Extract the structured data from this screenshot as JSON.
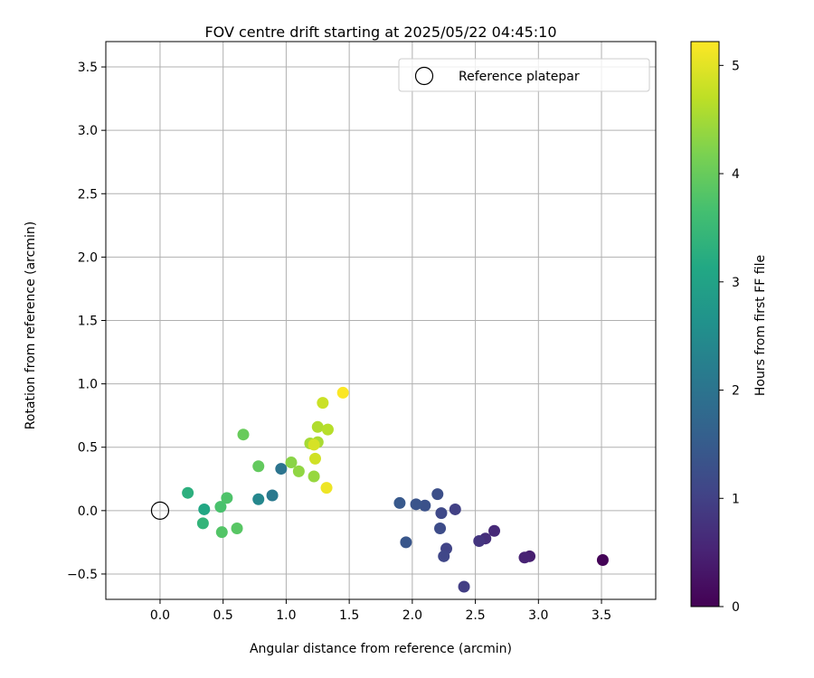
{
  "chart_data": {
    "type": "scatter",
    "title": "FOV centre drift starting at 2025/05/22 04:45:10",
    "xlabel": "Angular distance from reference (arcmin)",
    "ylabel": "Rotation from reference (arcmin)",
    "xlim": [
      -0.43,
      3.93
    ],
    "ylim": [
      -0.7,
      3.7
    ],
    "xticks": [
      0.0,
      0.5,
      1.0,
      1.5,
      2.0,
      2.5,
      3.0,
      3.5
    ],
    "xtick_labels": [
      "0.0",
      "0.5",
      "1.0",
      "1.5",
      "2.0",
      "2.5",
      "3.0",
      "3.5"
    ],
    "yticks": [
      -0.5,
      0.0,
      0.5,
      1.0,
      1.5,
      2.0,
      2.5,
      3.0,
      3.5
    ],
    "ytick_labels": [
      "−0.5",
      "0.0",
      "0.5",
      "1.0",
      "1.5",
      "2.0",
      "2.5",
      "3.0",
      "3.5"
    ],
    "grid": true,
    "legend": {
      "position": "top-right",
      "entries": [
        "Reference platepar"
      ]
    },
    "reference_point": {
      "x": 0.0,
      "y": 0.0
    },
    "colorbar": {
      "label": "Hours from first FF file",
      "range": [
        0,
        5.22
      ],
      "ticks": [
        0,
        1,
        2,
        3,
        4,
        5
      ],
      "tick_labels": [
        "0",
        "1",
        "2",
        "3",
        "4",
        "5"
      ],
      "colormap": "viridis"
    },
    "points": [
      {
        "x": 3.51,
        "y": -0.39,
        "c": 0.05
      },
      {
        "x": 2.93,
        "y": -0.36,
        "c": 0.45
      },
      {
        "x": 2.89,
        "y": -0.37,
        "c": 0.5
      },
      {
        "x": 2.65,
        "y": -0.16,
        "c": 0.6
      },
      {
        "x": 2.58,
        "y": -0.22,
        "c": 0.7
      },
      {
        "x": 2.53,
        "y": -0.24,
        "c": 0.8
      },
      {
        "x": 2.41,
        "y": -0.6,
        "c": 0.95
      },
      {
        "x": 2.34,
        "y": 0.01,
        "c": 1.0
      },
      {
        "x": 2.27,
        "y": -0.3,
        "c": 1.05
      },
      {
        "x": 2.25,
        "y": -0.36,
        "c": 1.1
      },
      {
        "x": 2.23,
        "y": -0.02,
        "c": 1.15
      },
      {
        "x": 2.22,
        "y": -0.14,
        "c": 1.2
      },
      {
        "x": 2.2,
        "y": 0.13,
        "c": 1.25
      },
      {
        "x": 2.1,
        "y": 0.04,
        "c": 1.3
      },
      {
        "x": 2.03,
        "y": 0.05,
        "c": 1.35
      },
      {
        "x": 1.95,
        "y": -0.25,
        "c": 1.4
      },
      {
        "x": 1.9,
        "y": 0.06,
        "c": 1.45
      },
      {
        "x": 0.96,
        "y": 0.33,
        "c": 2.0
      },
      {
        "x": 0.89,
        "y": 0.12,
        "c": 2.1
      },
      {
        "x": 0.78,
        "y": 0.09,
        "c": 2.4
      },
      {
        "x": 0.35,
        "y": 0.01,
        "c": 3.1
      },
      {
        "x": 0.22,
        "y": 0.14,
        "c": 3.3
      },
      {
        "x": 0.34,
        "y": -0.1,
        "c": 3.4
      },
      {
        "x": 0.48,
        "y": 0.03,
        "c": 3.7
      },
      {
        "x": 0.53,
        "y": 0.1,
        "c": 3.75
      },
      {
        "x": 0.49,
        "y": -0.17,
        "c": 3.8
      },
      {
        "x": 0.61,
        "y": -0.14,
        "c": 3.85
      },
      {
        "x": 0.78,
        "y": 0.35,
        "c": 3.95
      },
      {
        "x": 0.66,
        "y": 0.6,
        "c": 4.0
      },
      {
        "x": 1.04,
        "y": 0.38,
        "c": 4.3
      },
      {
        "x": 1.1,
        "y": 0.31,
        "c": 4.35
      },
      {
        "x": 1.22,
        "y": 0.27,
        "c": 4.4
      },
      {
        "x": 1.19,
        "y": 0.53,
        "c": 4.5
      },
      {
        "x": 1.25,
        "y": 0.54,
        "c": 4.55
      },
      {
        "x": 1.25,
        "y": 0.66,
        "c": 4.6
      },
      {
        "x": 1.33,
        "y": 0.64,
        "c": 4.65
      },
      {
        "x": 1.29,
        "y": 0.85,
        "c": 4.8
      },
      {
        "x": 1.23,
        "y": 0.41,
        "c": 4.85
      },
      {
        "x": 1.22,
        "y": 0.52,
        "c": 4.9
      },
      {
        "x": 1.32,
        "y": 0.18,
        "c": 5.1
      },
      {
        "x": 1.45,
        "y": 0.93,
        "c": 5.2
      }
    ]
  }
}
